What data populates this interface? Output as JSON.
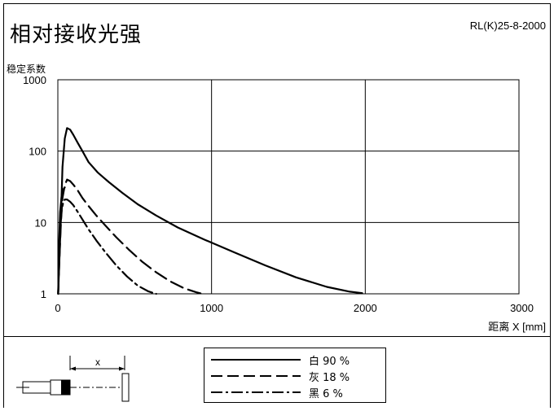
{
  "header": {
    "title": "相对接收光强",
    "model": "RL(K)25-8-2000"
  },
  "chart_data": {
    "type": "line",
    "ylabel": "稳定系数",
    "xlabel": "距离 X [mm]",
    "xlim": [
      0,
      3000
    ],
    "ylim": [
      1,
      1000
    ],
    "yscale": "log",
    "x_ticks": [
      "0",
      "1000",
      "2000",
      "3000"
    ],
    "y_ticks": [
      "1",
      "10",
      "100",
      "1000"
    ],
    "grid": true,
    "series": [
      {
        "name": "白 90 %",
        "style": "solid",
        "x": [
          2,
          10,
          20,
          30,
          45,
          60,
          80,
          100,
          130,
          160,
          200,
          260,
          330,
          420,
          520,
          640,
          780,
          950,
          1150,
          1350,
          1550,
          1750,
          1900,
          1980
        ],
        "y": [
          1,
          3,
          12,
          60,
          150,
          210,
          200,
          170,
          130,
          100,
          70,
          50,
          37,
          26,
          18,
          12.5,
          8.5,
          5.8,
          3.8,
          2.5,
          1.7,
          1.25,
          1.07,
          1.02
        ]
      },
      {
        "name": "灰 18 %",
        "style": "dash",
        "x": [
          2,
          10,
          20,
          30,
          45,
          60,
          80,
          100,
          130,
          160,
          200,
          250,
          310,
          380,
          460,
          550,
          640,
          730,
          820,
          900,
          940
        ],
        "y": [
          1,
          3,
          10,
          22,
          33,
          40,
          38,
          34,
          28,
          22,
          17,
          12.5,
          9,
          6.2,
          4.2,
          2.8,
          2.0,
          1.5,
          1.2,
          1.05,
          1.0
        ]
      },
      {
        "name": "黑 6 %",
        "style": "dashdot",
        "x": [
          2,
          8,
          15,
          25,
          35,
          45,
          60,
          80,
          100,
          130,
          160,
          200,
          250,
          310,
          380,
          450,
          520,
          590,
          640
        ],
        "y": [
          1,
          3,
          8,
          15,
          19,
          21,
          21,
          19.5,
          17.5,
          14,
          11,
          8,
          5.6,
          3.8,
          2.5,
          1.75,
          1.3,
          1.08,
          1.0
        ]
      },
      {
        "name": "",
        "style": "solid",
        "x": [
          2,
          8,
          15,
          25,
          35,
          45
        ],
        "y": [
          1,
          5,
          14,
          24,
          29,
          31
        ]
      }
    ],
    "legend_position": "bottom-center"
  },
  "diagram": {
    "distance_label": "x"
  }
}
